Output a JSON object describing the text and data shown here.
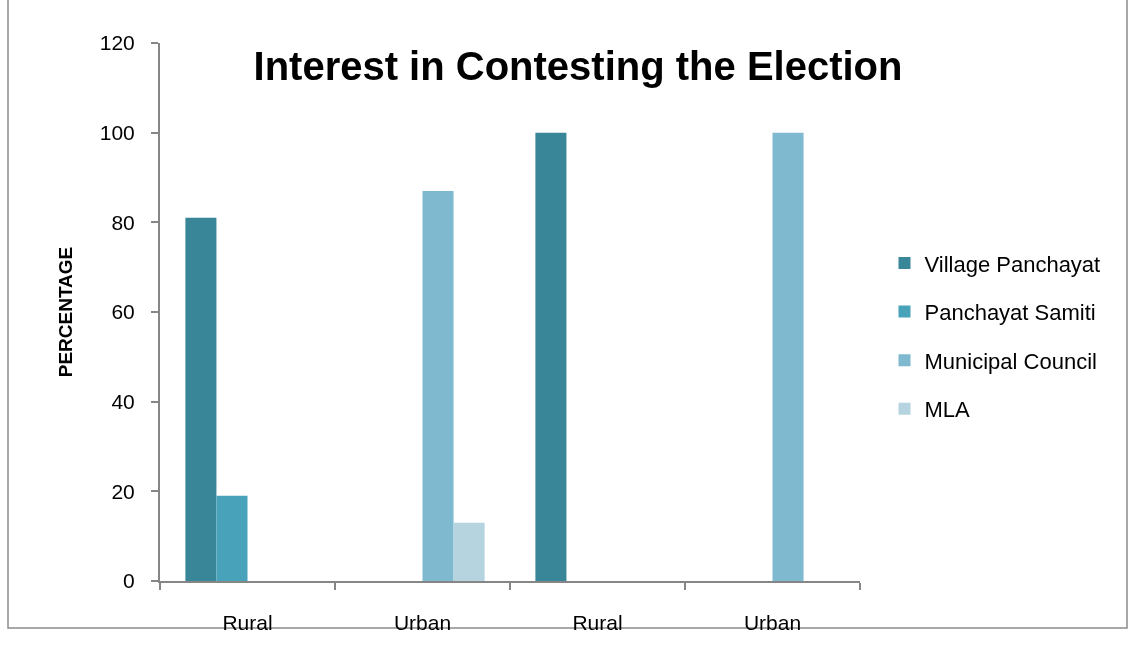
{
  "chart_data": {
    "type": "bar",
    "title": "Interest in Contesting the Election",
    "ylabel": "PERCENTAGE",
    "categories": [
      "Rural",
      "Urban",
      "Rural",
      "Urban"
    ],
    "series": [
      {
        "name": "Village Panchayat",
        "color": "#3a8699",
        "values": [
          81,
          null,
          100,
          null
        ]
      },
      {
        "name": "Panchayat Samiti",
        "color": "#47a2ba",
        "values": [
          19,
          null,
          null,
          null
        ]
      },
      {
        "name": "Municipal Council",
        "color": "#7fb9d0",
        "values": [
          null,
          87,
          null,
          100
        ]
      },
      {
        "name": "MLA",
        "color": "#b6d4e0",
        "values": [
          null,
          13,
          null,
          null
        ]
      }
    ],
    "ylim": [
      0,
      120
    ],
    "yticks": [
      0,
      20,
      40,
      60,
      80,
      100,
      120
    ],
    "legend": "right"
  }
}
